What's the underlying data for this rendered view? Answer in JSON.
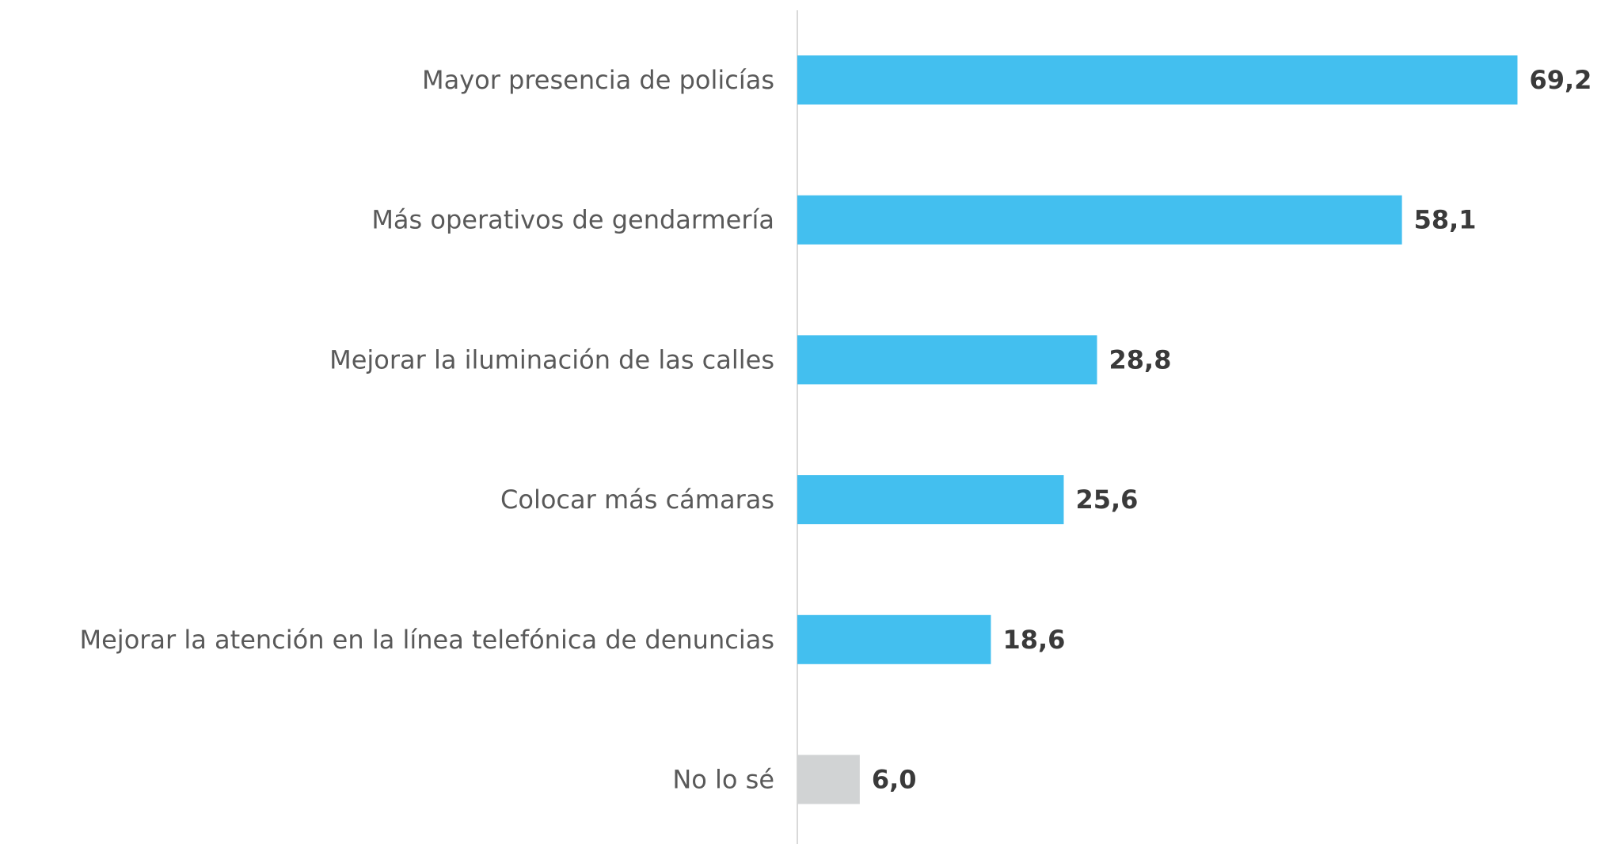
{
  "chart_data": {
    "type": "bar",
    "orientation": "horizontal",
    "categories": [
      "Mayor presencia de policías",
      "Más operativos de gendarmería",
      "Mejorar la iluminación de las calles",
      "Colocar más cámaras",
      "Mejorar la atención en la línea telefónica de denuncias",
      "No lo sé"
    ],
    "values": [
      69.2,
      58.1,
      28.8,
      25.6,
      18.6,
      6.0
    ],
    "value_labels": [
      "69,2",
      "58,1",
      "28,8",
      "25,6",
      "18,6",
      "6,0"
    ],
    "colors": [
      "#43bfef",
      "#43bfef",
      "#43bfef",
      "#43bfef",
      "#43bfef",
      "#d1d3d4"
    ],
    "xlim": [
      0,
      77
    ]
  }
}
